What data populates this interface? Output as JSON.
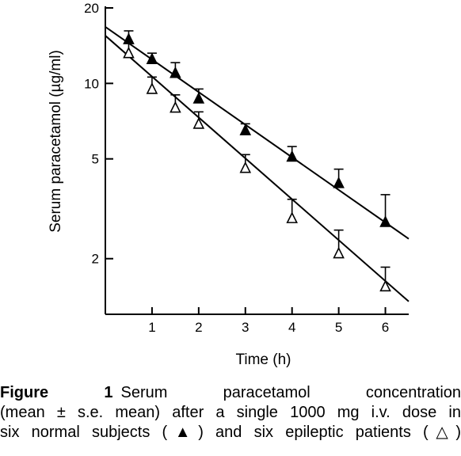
{
  "chart_data": {
    "type": "scatter",
    "title": "",
    "xlabel": "Time (h)",
    "ylabel": "Serum paracetamol (µg/ml)",
    "xlim": [
      0,
      6.5
    ],
    "ylim": [
      1.2,
      20
    ],
    "yscale": "log",
    "xticks": [
      1,
      2,
      3,
      4,
      5,
      6
    ],
    "yticks": [
      2,
      5,
      10,
      20
    ],
    "grid": false,
    "legend": "none",
    "series": [
      {
        "marker": "filled-triangle",
        "x": [
          0.5,
          1,
          1.5,
          2,
          3,
          4,
          5,
          6
        ],
        "y": [
          15,
          12.5,
          11,
          8.7,
          6.5,
          5.1,
          4.0,
          2.8
        ],
        "err_upper": [
          1.2,
          0.7,
          1.1,
          0.8,
          0.4,
          0.5,
          0.55,
          0.8
        ],
        "fit_line": {
          "x": [
            0,
            6.5
          ],
          "y": [
            16.8,
            2.4
          ]
        }
      },
      {
        "marker": "open-triangle",
        "x": [
          0.5,
          1,
          1.5,
          2,
          3,
          4,
          5,
          6
        ],
        "y": [
          13.2,
          9.5,
          8.0,
          6.9,
          4.6,
          2.9,
          2.1,
          1.55
        ],
        "err_upper": [
          1.3,
          1.1,
          1.0,
          0.8,
          0.6,
          0.55,
          0.5,
          0.3
        ],
        "fit_line": {
          "x": [
            0,
            6.5
          ],
          "y": [
            15.5,
            1.35
          ]
        }
      }
    ]
  },
  "caption": {
    "label": "Figure 1",
    "line1": "Serum paracetamol concentration",
    "line2": "(mean ± s.e. mean) after a single 1000 mg i.v. dose in",
    "line3": "six normal subjects (▲) and six epileptic patients (△)"
  }
}
